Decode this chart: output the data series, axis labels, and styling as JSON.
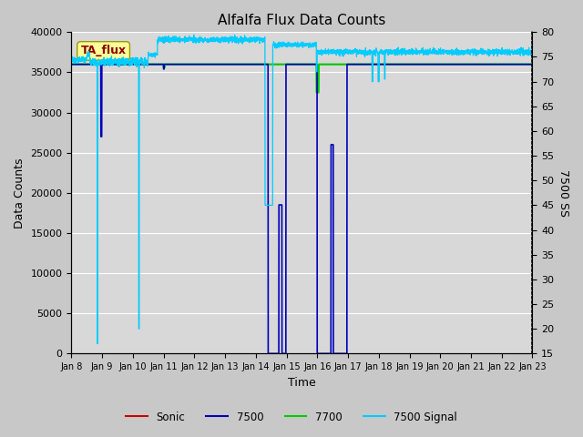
{
  "title": "Alfalfa Flux Data Counts",
  "xlabel": "Time",
  "ylabel_left": "Data Counts",
  "ylabel_right": "7500 SS",
  "annotation": "TA_flux",
  "ylim_left": [
    0,
    40000
  ],
  "ylim_right": [
    15,
    80
  ],
  "x_tick_labels": [
    "Jan 8",
    "Jan 9",
    "Jan 10",
    "Jan 11",
    "Jan 12",
    "Jan 13",
    "Jan 14",
    "Jan 15",
    "Jan 16",
    "Jan 17",
    "Jan 18",
    "Jan 19",
    "Jan 20",
    "Jan 21",
    "Jan 22",
    "Jan 23"
  ],
  "legend_labels": [
    "Sonic",
    "7500",
    "7700",
    "7500 Signal"
  ],
  "sonic_color": "#cc0000",
  "color_7500": "#0000bb",
  "color_7700": "#00cc00",
  "color_signal": "#00ccff",
  "bg_color": "#d8d8d8",
  "axes_bg": "#d8d8d8",
  "grid_color": "#ffffff",
  "annotation_box_color": "#ffff99",
  "annotation_text_color": "#8b0000",
  "annotation_edge_color": "#999900"
}
